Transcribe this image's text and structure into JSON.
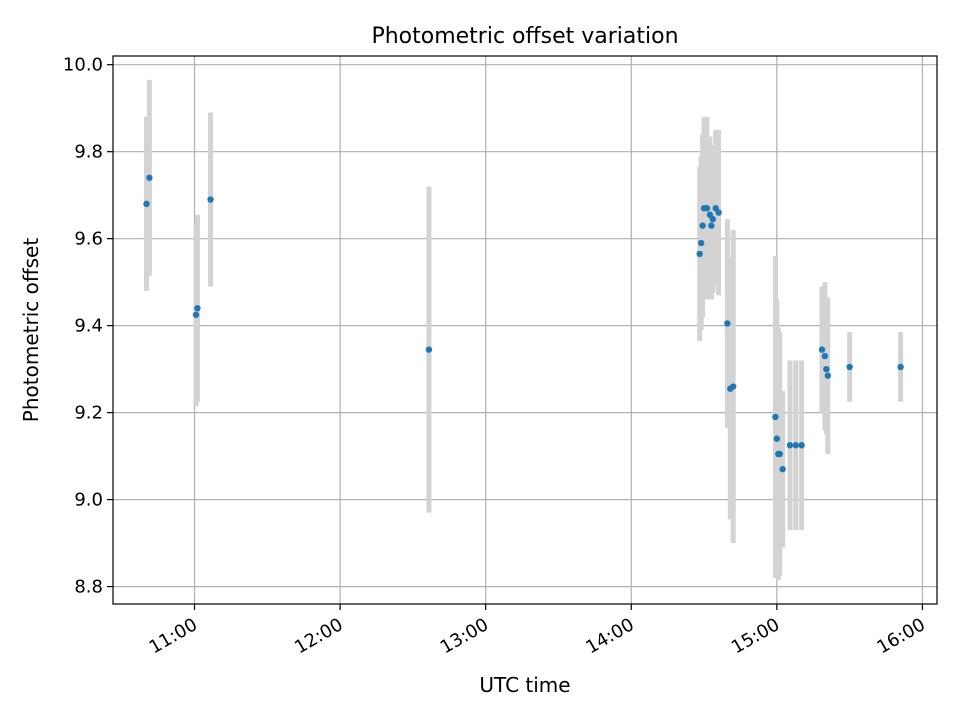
{
  "chart_data": {
    "type": "scatter",
    "title": "Photometric offset variation",
    "xlabel": "UTC time",
    "ylabel": "Photometric offset",
    "x_unit": "hours UTC",
    "xlim": [
      10.44,
      16.1
    ],
    "ylim": [
      8.76,
      10.02
    ],
    "xticks": [
      11,
      12,
      13,
      14,
      15,
      16
    ],
    "xtick_labels": [
      "11:00",
      "12:00",
      "13:00",
      "14:00",
      "15:00",
      "16:00"
    ],
    "yticks": [
      8.8,
      9.0,
      9.2,
      9.4,
      9.6,
      9.8,
      10.0
    ],
    "ytick_labels": [
      "8.8",
      "9.0",
      "9.2",
      "9.4",
      "9.6",
      "9.8",
      "10.0"
    ],
    "grid": true,
    "legend": "none",
    "colors": {
      "point": "#1f77b4",
      "errorbar": "#d3d3d3",
      "grid": "#b0b0b0",
      "axes": "#000000"
    },
    "series": [
      {
        "points": [
          {
            "x": 10.67,
            "y": 9.68,
            "err": 0.2
          },
          {
            "x": 10.69,
            "y": 9.74,
            "err": 0.225
          },
          {
            "x": 11.01,
            "y": 9.425,
            "err": 0.21
          },
          {
            "x": 11.02,
            "y": 9.44,
            "err": 0.215
          },
          {
            "x": 11.11,
            "y": 9.69,
            "err": 0.2
          },
          {
            "x": 12.61,
            "y": 9.345,
            "err": 0.375
          },
          {
            "x": 14.47,
            "y": 9.565,
            "err": 0.2
          },
          {
            "x": 14.48,
            "y": 9.59,
            "err": 0.2
          },
          {
            "x": 14.49,
            "y": 9.63,
            "err": 0.21
          },
          {
            "x": 14.5,
            "y": 9.67,
            "err": 0.21
          },
          {
            "x": 14.52,
            "y": 9.67,
            "err": 0.21
          },
          {
            "x": 14.54,
            "y": 9.655,
            "err": 0.18
          },
          {
            "x": 14.55,
            "y": 9.63,
            "err": 0.17
          },
          {
            "x": 14.56,
            "y": 9.645,
            "err": 0.17
          },
          {
            "x": 14.58,
            "y": 9.67,
            "err": 0.18
          },
          {
            "x": 14.6,
            "y": 9.66,
            "err": 0.19
          },
          {
            "x": 14.66,
            "y": 9.405,
            "err": 0.24
          },
          {
            "x": 14.68,
            "y": 9.255,
            "err": 0.3
          },
          {
            "x": 14.7,
            "y": 9.26,
            "err": 0.36
          },
          {
            "x": 14.99,
            "y": 9.19,
            "err": 0.37
          },
          {
            "x": 15.0,
            "y": 9.14,
            "err": 0.32
          },
          {
            "x": 15.01,
            "y": 9.105,
            "err": 0.29
          },
          {
            "x": 15.02,
            "y": 9.105,
            "err": 0.28
          },
          {
            "x": 15.04,
            "y": 9.07,
            "err": 0.18
          },
          {
            "x": 15.09,
            "y": 9.125,
            "err": 0.195
          },
          {
            "x": 15.13,
            "y": 9.125,
            "err": 0.195
          },
          {
            "x": 15.17,
            "y": 9.125,
            "err": 0.195
          },
          {
            "x": 15.31,
            "y": 9.345,
            "err": 0.145
          },
          {
            "x": 15.33,
            "y": 9.33,
            "err": 0.17
          },
          {
            "x": 15.34,
            "y": 9.3,
            "err": 0.15
          },
          {
            "x": 15.35,
            "y": 9.285,
            "err": 0.18
          },
          {
            "x": 15.5,
            "y": 9.305,
            "err": 0.08
          },
          {
            "x": 15.85,
            "y": 9.305,
            "err": 0.08
          }
        ]
      }
    ]
  }
}
